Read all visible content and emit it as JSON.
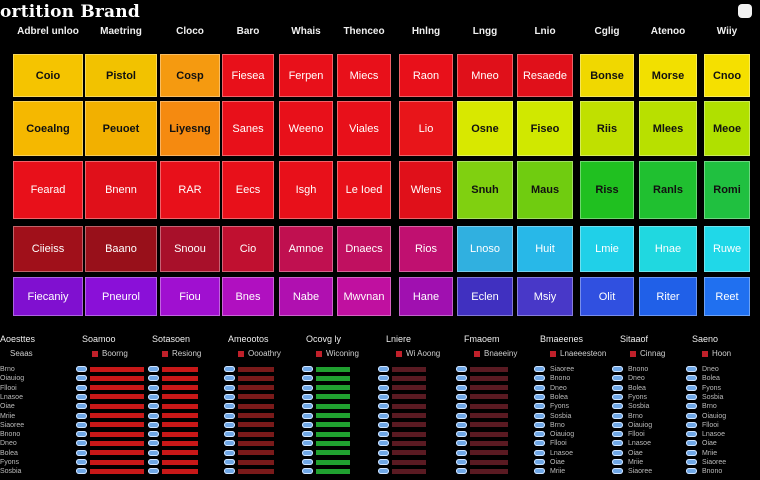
{
  "app": {
    "title": "ortition Brand"
  },
  "headers": [
    "Adbrel unloo",
    "Maetring",
    "Cloco",
    "Baro",
    "Whais",
    "Thenceo",
    "Hnlng",
    "Lngg",
    "Lnio",
    "Cglig",
    "Atenoo",
    "Wiiy"
  ],
  "grid": [
    [
      {
        "label": "Coio",
        "color": "#f5c400"
      },
      {
        "label": "Pistol",
        "color": "#f2c200"
      },
      {
        "label": "Cosp",
        "color": "#f59a10"
      },
      {
        "label": "Fiesea",
        "color": "#e8101a"
      },
      {
        "label": "Ferpen",
        "color": "#e8101a"
      },
      {
        "label": "Miecs",
        "color": "#e8101a"
      },
      {
        "label": "Raon",
        "color": "#e8101a"
      },
      {
        "label": "Mneo",
        "color": "#e0101a"
      },
      {
        "label": "Resaede",
        "color": "#e0101a"
      },
      {
        "label": "Bonse",
        "color": "#f0d800"
      },
      {
        "label": "Morse",
        "color": "#f2e000"
      },
      {
        "label": "Cnoo",
        "color": "#f5e000"
      }
    ],
    [
      {
        "label": "Coealng",
        "color": "#f5b800"
      },
      {
        "label": "Peuoet",
        "color": "#f2b000"
      },
      {
        "label": "Liyesng",
        "color": "#f58a10"
      },
      {
        "label": "Sanes",
        "color": "#e8101a"
      },
      {
        "label": "Weeno",
        "color": "#e8101a"
      },
      {
        "label": "Viales",
        "color": "#e8101a"
      },
      {
        "label": "Lio",
        "color": "#e8151a"
      },
      {
        "label": "Osne",
        "color": "#d8e800"
      },
      {
        "label": "Fiseo",
        "color": "#d0e800"
      },
      {
        "label": "Riis",
        "color": "#c0e000"
      },
      {
        "label": "Mlees",
        "color": "#b8e000"
      },
      {
        "label": "Meoe",
        "color": "#b0e000"
      }
    ],
    [
      {
        "label": "Fearad",
        "color": "#e8101a"
      },
      {
        "label": "Bnenn",
        "color": "#e0101a"
      },
      {
        "label": "RAR",
        "color": "#e8101a"
      },
      {
        "label": "Eecs",
        "color": "#e8101a"
      },
      {
        "label": "Isgh",
        "color": "#e8101a"
      },
      {
        "label": "Le Ioed",
        "color": "#e8101a"
      },
      {
        "label": "Wlens",
        "color": "#e0101a"
      },
      {
        "label": "Snuh",
        "color": "#80d010"
      },
      {
        "label": "Maus",
        "color": "#70cc10"
      },
      {
        "label": "Riss",
        "color": "#20c020"
      },
      {
        "label": "Ranls",
        "color": "#20c030"
      },
      {
        "label": "Romi",
        "color": "#20c040"
      }
    ],
    [
      {
        "label": "Ciieiss",
        "color": "#a0101a"
      },
      {
        "label": "Baano",
        "color": "#98101a"
      },
      {
        "label": "Snoou",
        "color": "#a8102a"
      },
      {
        "label": "Cio",
        "color": "#c01030"
      },
      {
        "label": "Amnoe",
        "color": "#c01050"
      },
      {
        "label": "Dnaecs",
        "color": "#c01060"
      },
      {
        "label": "Rios",
        "color": "#c01070"
      },
      {
        "label": "Lnoso",
        "color": "#30b0e0"
      },
      {
        "label": "Huit",
        "color": "#28b8e8"
      },
      {
        "label": "Lmie",
        "color": "#20d0e8"
      },
      {
        "label": "Hnae",
        "color": "#20d8e0"
      },
      {
        "label": "Ruwe",
        "color": "#20d8e8"
      }
    ],
    [
      {
        "label": "Fiecaniy",
        "color": "#8010d0"
      },
      {
        "label": "Pneurol",
        "color": "#8a10d8"
      },
      {
        "label": "Fiou",
        "color": "#a010d0"
      },
      {
        "label": "Bnes",
        "color": "#b010c0"
      },
      {
        "label": "Nabe",
        "color": "#b010b0"
      },
      {
        "label": "Mwvnan",
        "color": "#c010a0"
      },
      {
        "label": "Hane",
        "color": "#a010b0"
      },
      {
        "label": "Eclen",
        "color": "#4030c0"
      },
      {
        "label": "Msiy",
        "color": "#4838c8"
      },
      {
        "label": "Olit",
        "color": "#3050e0"
      },
      {
        "label": "Riter",
        "color": "#2060e8"
      },
      {
        "label": "Reet",
        "color": "#2070f0"
      }
    ]
  ],
  "lower": {
    "columns": [
      {
        "head": "Aoesttes",
        "sub": "Seaas"
      },
      {
        "head": "Soamoo",
        "sub": "Boorng"
      },
      {
        "head": "Sotasoen",
        "sub": "Resiong"
      },
      {
        "head": "Ameootos",
        "sub": "Oooathry"
      },
      {
        "head": "Ocovg ly",
        "sub": "Wiconing"
      },
      {
        "head": "Lniere",
        "sub": "Wi Aoong"
      },
      {
        "head": "Fmaoem",
        "sub": "Bnaeeiny"
      },
      {
        "head": "Bmaeenes",
        "sub": "Lnaeeesteon"
      },
      {
        "head": "Sitaaof",
        "sub": "Cinnag"
      },
      {
        "head": "Saeno",
        "sub": "Hoon"
      }
    ],
    "row_labels": [
      "Brno",
      "Oiauiog",
      "Fllooi",
      "Lnasoe",
      "Oiae",
      "Mriie",
      "Siaoree",
      "Bnono",
      "Dneo",
      "Bolea",
      "Fyons",
      "Sosbia"
    ]
  },
  "colors": {
    "bar_red": "#c81818",
    "bar_darkred": "#7a1a1a",
    "bar_green": "#20a030",
    "bar_maroon": "#5a1a22",
    "dot_blue": "#6fa7e6"
  }
}
